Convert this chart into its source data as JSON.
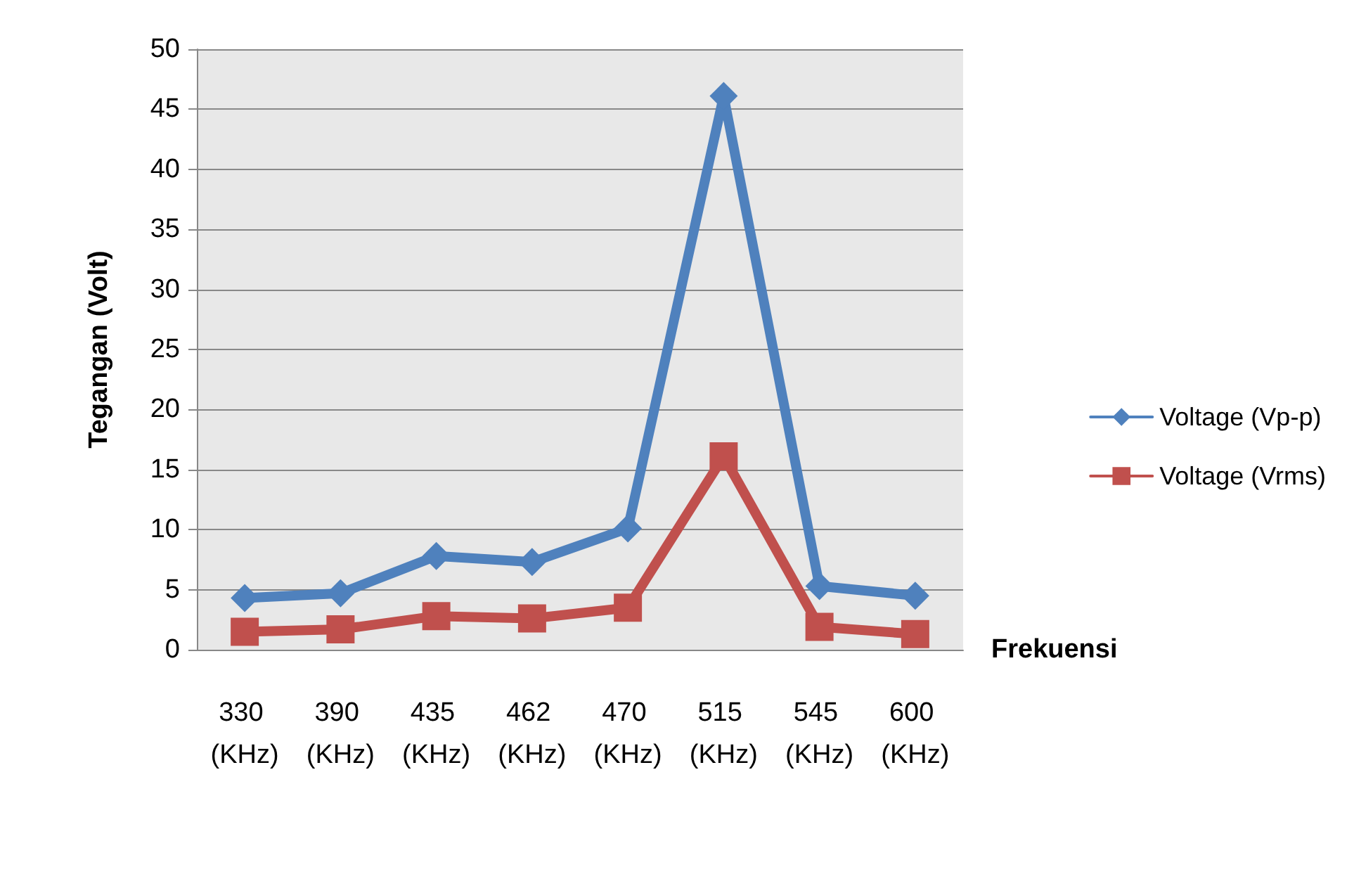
{
  "chart_data": {
    "type": "line",
    "xlabel": "Frekuensi",
    "ylabel": "Tegangan (Volt)",
    "categories": [
      "330 (KHz)",
      "390 (KHz)",
      "435 (KHz)",
      "462 (KHz)",
      "470 (KHz)",
      "515 (KHz)",
      "545 (KHz)",
      "600 (KHz)"
    ],
    "series": [
      {
        "name": "Voltage (Vp-p)",
        "color": "#4f81bd",
        "marker": "diamond",
        "values": [
          4.3,
          4.7,
          7.8,
          7.3,
          10.1,
          46.1,
          5.3,
          4.5
        ]
      },
      {
        "name": "Voltage (Vrms)",
        "color": "#c0504d",
        "marker": "square",
        "values": [
          1.5,
          1.7,
          2.8,
          2.6,
          3.5,
          16.1,
          1.9,
          1.3
        ]
      }
    ],
    "ylim": [
      0,
      50
    ],
    "yticks": [
      0,
      5,
      10,
      15,
      20,
      25,
      30,
      35,
      40,
      45,
      50
    ],
    "grid": "y",
    "legend": "right",
    "line_style": "solid"
  }
}
